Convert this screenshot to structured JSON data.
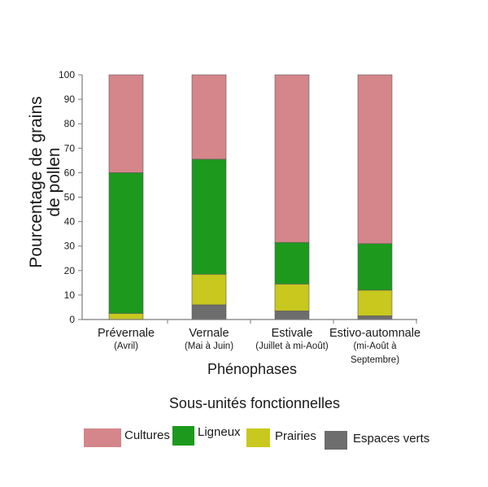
{
  "chart_data": {
    "type": "bar",
    "stacked": true,
    "categories": [
      "Prévernale",
      "Vernale",
      "Estivale",
      "Estivo-automnale"
    ],
    "category_sublabels": [
      [
        "(Avril)"
      ],
      [
        "(Mai à Juin)"
      ],
      [
        "(Juillet à mi-Août)"
      ],
      [
        "(mi-Août à",
        "Septembre)"
      ]
    ],
    "series": [
      {
        "name": "Espaces verts",
        "color": "#6d6d6d",
        "values": [
          0,
          6,
          3.5,
          1.5
        ]
      },
      {
        "name": "Prairies",
        "color": "#c8c81e",
        "values": [
          2.5,
          12.5,
          11,
          10.5
        ]
      },
      {
        "name": "Ligneux",
        "color": "#1d991d",
        "values": [
          57.5,
          47,
          17,
          19
        ]
      },
      {
        "name": "Cultures",
        "color": "#d4868a",
        "values": [
          40,
          34.5,
          68.5,
          69
        ]
      }
    ],
    "xlabel": "Phénophases",
    "ylabel": "Pourcentage de grains de pollen",
    "ylim": [
      0,
      100
    ],
    "yticks": [
      0,
      10,
      20,
      30,
      40,
      50,
      60,
      70,
      80,
      90,
      100
    ],
    "grid": false,
    "legend": "bottom",
    "legend_title": "Sous-unités fonctionnelles"
  }
}
